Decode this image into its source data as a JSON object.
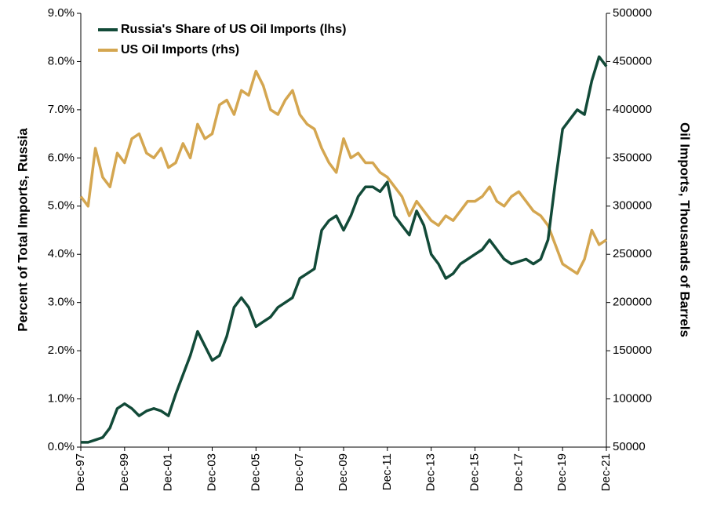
{
  "chart_data": {
    "type": "line",
    "y_label": "Percent of Total Imports, Russia",
    "y2_label": "Oil Imports, Thousands of Barrels",
    "legend": "upper left",
    "grid": false,
    "categories": [
      "Dec-97",
      null,
      null,
      null,
      null,
      null,
      "Dec-99",
      null,
      null,
      null,
      null,
      null,
      "Dec-01",
      null,
      null,
      null,
      null,
      null,
      "Dec-03",
      null,
      null,
      null,
      null,
      null,
      "Dec-05",
      null,
      null,
      null,
      null,
      null,
      "Dec-07",
      null,
      null,
      null,
      null,
      null,
      "Dec-09",
      null,
      null,
      null,
      null,
      null,
      "Dec-11",
      null,
      null,
      null,
      null,
      null,
      "Dec-13",
      null,
      null,
      null,
      null,
      null,
      "Dec-15",
      null,
      null,
      null,
      null,
      null,
      "Dec-17",
      null,
      null,
      null,
      null,
      null,
      "Dec-19",
      null,
      null,
      null,
      null,
      null,
      "Dec-21"
    ],
    "series": [
      {
        "name": "Russia's Share of US Oil Imports (lhs)",
        "color": "#124a38",
        "axis": "y",
        "values": [
          0.1,
          0.1,
          0.15,
          0.2,
          0.4,
          0.8,
          0.9,
          0.8,
          0.65,
          0.75,
          0.8,
          0.75,
          0.65,
          1.1,
          1.5,
          1.9,
          2.4,
          2.1,
          1.8,
          1.9,
          2.3,
          2.9,
          3.1,
          2.9,
          2.5,
          2.6,
          2.7,
          2.9,
          3.0,
          3.1,
          3.5,
          3.6,
          3.7,
          4.5,
          4.7,
          4.8,
          4.5,
          4.8,
          5.2,
          5.4,
          5.4,
          5.3,
          5.5,
          4.8,
          4.6,
          4.4,
          4.9,
          4.6,
          4.0,
          3.8,
          3.5,
          3.6,
          3.8,
          3.9,
          4.0,
          4.1,
          4.3,
          4.1,
          3.9,
          3.8,
          3.85,
          3.9,
          3.8,
          3.9,
          4.3,
          5.5,
          6.6,
          6.8,
          7.0,
          6.9,
          7.6,
          8.1,
          7.9
        ]
      },
      {
        "name": "US Oil Imports (rhs)",
        "color": "#d4a650",
        "axis": "y2",
        "values": [
          310000,
          300000,
          360000,
          330000,
          320000,
          355000,
          345000,
          370000,
          375000,
          355000,
          350000,
          360000,
          340000,
          345000,
          365000,
          350000,
          385000,
          370000,
          375000,
          405000,
          410000,
          395000,
          420000,
          415000,
          440000,
          425000,
          400000,
          395000,
          410000,
          420000,
          395000,
          385000,
          380000,
          360000,
          345000,
          335000,
          370000,
          350000,
          355000,
          345000,
          345000,
          335000,
          330000,
          320000,
          310000,
          290000,
          305000,
          295000,
          285000,
          280000,
          290000,
          285000,
          295000,
          305000,
          305000,
          310000,
          320000,
          305000,
          300000,
          310000,
          315000,
          305000,
          295000,
          290000,
          280000,
          260000,
          240000,
          235000,
          230000,
          245000,
          275000,
          260000,
          265000
        ]
      }
    ],
    "ylim": [
      0,
      9
    ],
    "yticks": [
      {
        "value": 0,
        "label": "0.0%"
      },
      {
        "value": 1,
        "label": "1.0%"
      },
      {
        "value": 2,
        "label": "2.0%"
      },
      {
        "value": 3,
        "label": "3.0%"
      },
      {
        "value": 4,
        "label": "4.0%"
      },
      {
        "value": 5,
        "label": "5.0%"
      },
      {
        "value": 6,
        "label": "6.0%"
      },
      {
        "value": 7,
        "label": "7.0%"
      },
      {
        "value": 8,
        "label": "8.0%"
      },
      {
        "value": 9,
        "label": "9.0%"
      }
    ],
    "y2lim": [
      50000,
      500000
    ],
    "y2ticks": [
      50000,
      100000,
      150000,
      200000,
      250000,
      300000,
      350000,
      400000,
      450000,
      500000
    ]
  }
}
